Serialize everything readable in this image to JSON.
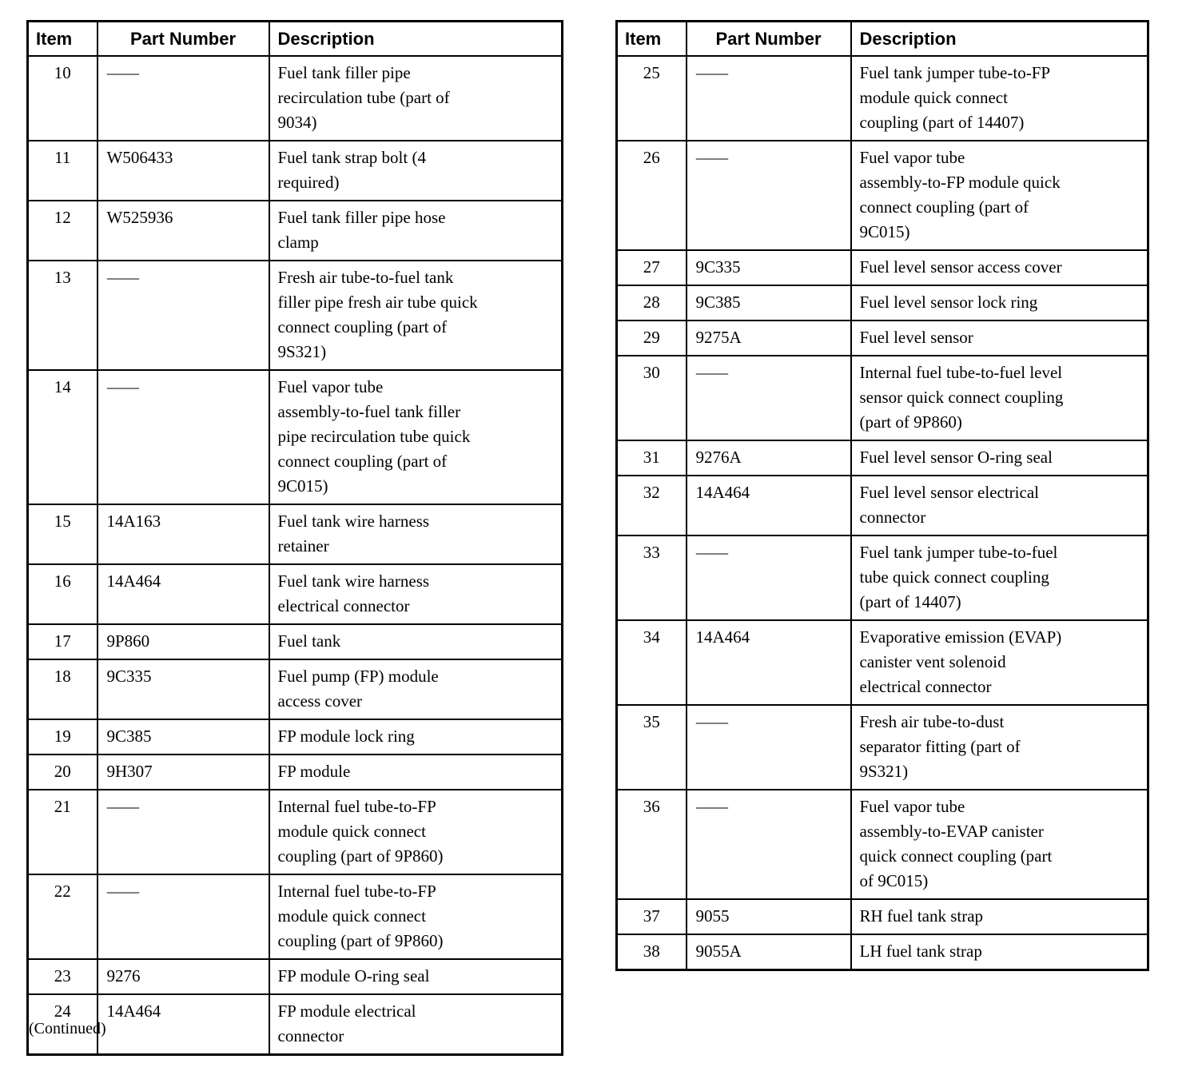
{
  "page": {
    "continued_note": "(Continued)",
    "background_color": "#ffffff",
    "border_color": "#000000",
    "text_color": "#000000"
  },
  "tables": [
    {
      "headers": [
        "Item",
        "Part Number",
        "Description"
      ],
      "rows": [
        [
          "10",
          "—",
          "Fuel tank filler pipe\nrecirculation tube (part of\n9034)"
        ],
        [
          "11",
          "W506433",
          "Fuel tank strap bolt (4\nrequired)"
        ],
        [
          "12",
          "W525936",
          "Fuel tank filler pipe hose\nclamp"
        ],
        [
          "13",
          "—",
          "Fresh air tube-to-fuel tank\nfiller pipe fresh air tube quick\nconnect coupling (part of\n9S321)"
        ],
        [
          "14",
          "—",
          "Fuel vapor tube\nassembly-to-fuel tank filler\npipe recirculation tube quick\nconnect coupling (part of\n9C015)"
        ],
        [
          "15",
          "14A163",
          "Fuel tank wire harness\nretainer"
        ],
        [
          "16",
          "14A464",
          "Fuel tank wire harness\nelectrical connector"
        ],
        [
          "17",
          "9P860",
          "Fuel tank"
        ],
        [
          "18",
          "9C335",
          "Fuel pump (FP) module\naccess cover"
        ],
        [
          "19",
          "9C385",
          "FP module lock ring"
        ],
        [
          "20",
          "9H307",
          "FP module"
        ],
        [
          "21",
          "—",
          "Internal fuel tube-to-FP\nmodule quick connect\ncoupling (part of 9P860)"
        ],
        [
          "22",
          "—",
          "Internal fuel tube-to-FP\nmodule quick connect\ncoupling (part of 9P860)"
        ],
        [
          "23",
          "9276",
          "FP module O-ring seal"
        ],
        [
          "24",
          "14A464",
          "FP module electrical\nconnector"
        ]
      ]
    },
    {
      "headers": [
        "Item",
        "Part Number",
        "Description"
      ],
      "rows": [
        [
          "25",
          "—",
          "Fuel tank jumper tube-to-FP\nmodule quick connect\ncoupling (part of 14407)"
        ],
        [
          "26",
          "—",
          "Fuel vapor tube\nassembly-to-FP module quick\nconnect coupling (part of\n9C015)"
        ],
        [
          "27",
          "9C335",
          "Fuel level sensor access cover"
        ],
        [
          "28",
          "9C385",
          "Fuel level sensor lock ring"
        ],
        [
          "29",
          "9275A",
          "Fuel level sensor"
        ],
        [
          "30",
          "—",
          "Internal fuel tube-to-fuel level\nsensor quick connect coupling\n(part of 9P860)"
        ],
        [
          "31",
          "9276A",
          "Fuel level sensor O-ring seal"
        ],
        [
          "32",
          "14A464",
          "Fuel level sensor electrical\nconnector"
        ],
        [
          "33",
          "—",
          "Fuel tank jumper tube-to-fuel\ntube quick connect coupling\n(part of 14407)"
        ],
        [
          "34",
          "14A464",
          "Evaporative emission (EVAP)\ncanister vent solenoid\nelectrical connector"
        ],
        [
          "35",
          "—",
          "Fresh air tube-to-dust\nseparator fitting (part of\n9S321)"
        ],
        [
          "36",
          "—",
          "Fuel vapor tube\nassembly-to-EVAP canister\nquick connect coupling (part\nof 9C015)"
        ],
        [
          "37",
          "9055",
          "RH fuel tank strap"
        ],
        [
          "38",
          "9055A",
          "LH fuel tank strap"
        ]
      ]
    }
  ]
}
